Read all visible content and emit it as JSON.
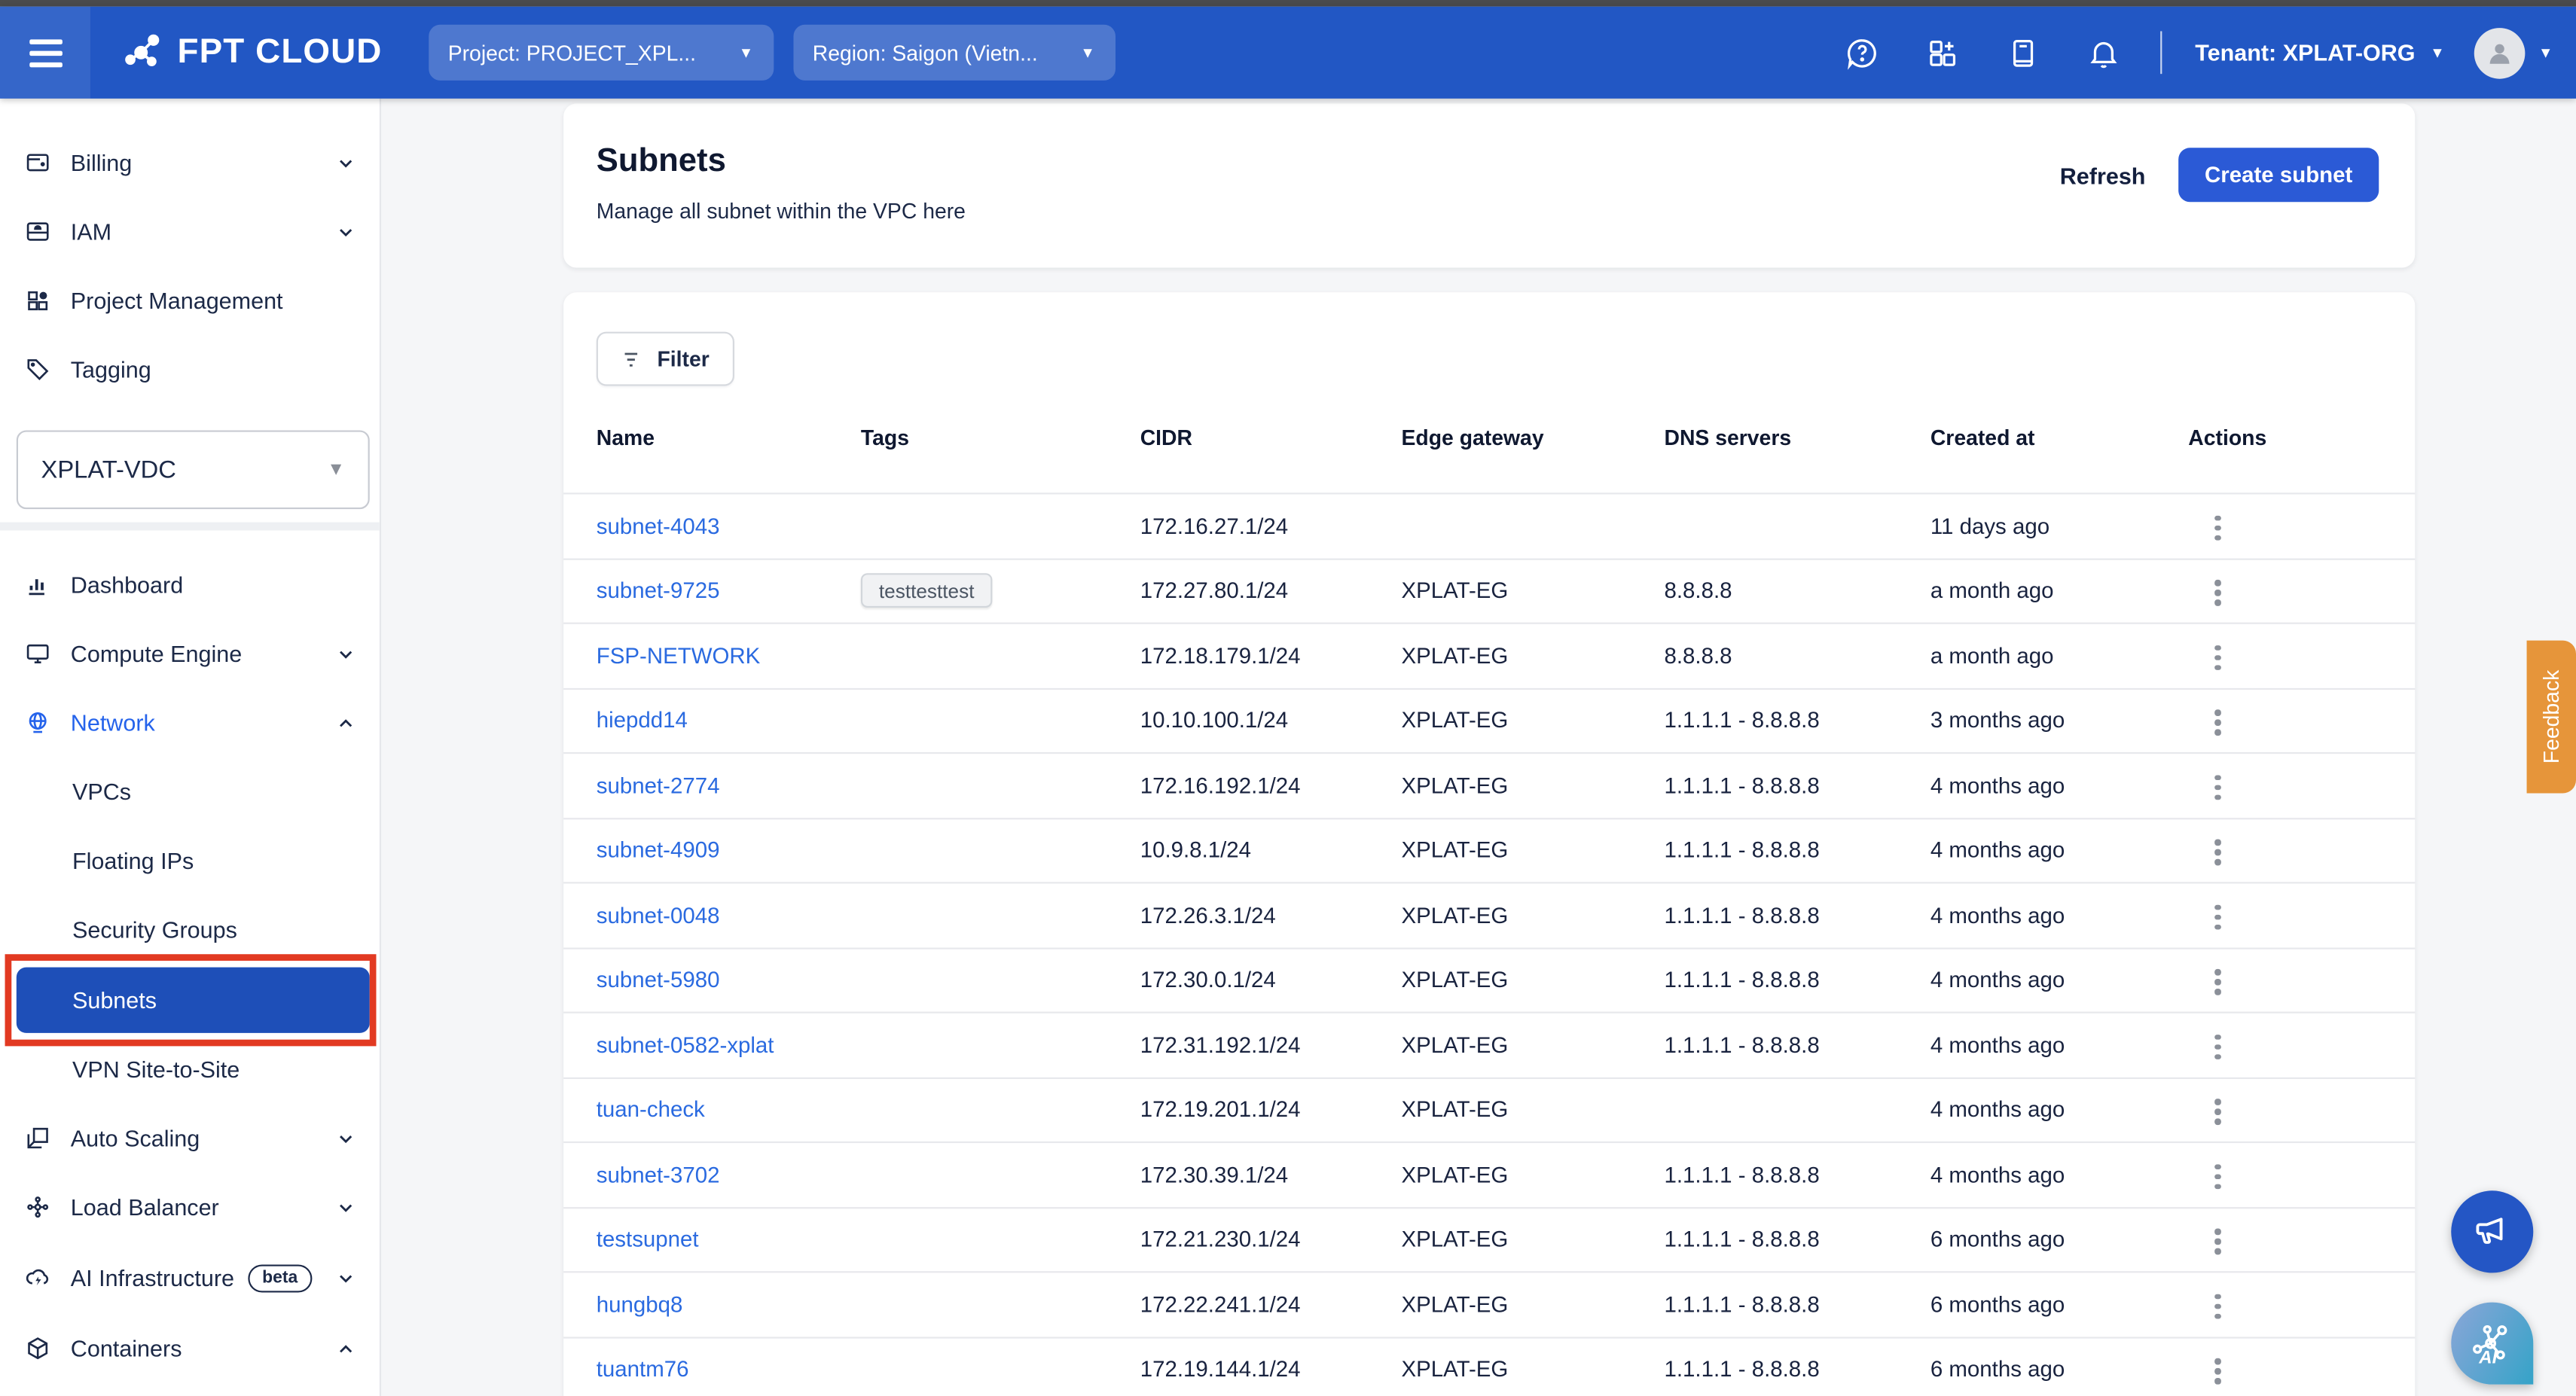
{
  "topbar": {
    "logo_text": "FPT CLOUD",
    "project_button": "Project: PROJECT_XPL...",
    "region_button": "Region: Saigon (Vietn...",
    "tenant_label": "Tenant: XPLAT-ORG",
    "action_icons": [
      "help-chat-icon",
      "apps-plus-icon",
      "docs-icon",
      "bell-icon"
    ]
  },
  "sidebar": {
    "top_items": [
      {
        "label": "Billing",
        "expandable": true
      },
      {
        "label": "IAM",
        "expandable": true
      },
      {
        "label": "Project Management",
        "expandable": false
      },
      {
        "label": "Tagging",
        "expandable": false
      }
    ],
    "vdc_selector": {
      "value": "XPLAT-VDC"
    },
    "menu": [
      {
        "label": "Dashboard"
      },
      {
        "label": "Compute Engine",
        "expandable": true
      },
      {
        "label": "Network",
        "active": true,
        "expanded": true
      }
    ],
    "network_subitems": [
      {
        "label": "VPCs",
        "selected": false
      },
      {
        "label": "Floating IPs",
        "selected": false
      },
      {
        "label": "Security Groups",
        "selected": false
      },
      {
        "label": "Subnets",
        "selected": true
      },
      {
        "label": "VPN Site-to-Site",
        "selected": false
      }
    ],
    "bottom_items": [
      {
        "label": "Auto Scaling",
        "expandable": true
      },
      {
        "label": "Load Balancer",
        "expandable": true
      },
      {
        "label": "AI Infrastructure",
        "badge": "beta",
        "expandable": true
      },
      {
        "label": "Containers",
        "expandable": true,
        "expanded": true
      }
    ]
  },
  "page": {
    "title": "Subnets",
    "subtitle": "Manage all subnet within the VPC here",
    "refresh_label": "Refresh",
    "create_label": "Create subnet"
  },
  "table": {
    "filter_label": "Filter",
    "columns": [
      "Name",
      "Tags",
      "CIDR",
      "Edge gateway",
      "DNS servers",
      "Created at",
      "Actions"
    ],
    "rows": [
      {
        "name": "subnet-4043",
        "tags": [],
        "cidr": "172.16.27.1/24",
        "edge_gateway": "",
        "dns_servers": "",
        "created_at": "11 days ago"
      },
      {
        "name": "subnet-9725",
        "tags": [
          "testtesttest"
        ],
        "cidr": "172.27.80.1/24",
        "edge_gateway": "XPLAT-EG",
        "dns_servers": "8.8.8.8",
        "created_at": "a month ago"
      },
      {
        "name": "FSP-NETWORK",
        "tags": [],
        "cidr": "172.18.179.1/24",
        "edge_gateway": "XPLAT-EG",
        "dns_servers": "8.8.8.8",
        "created_at": "a month ago"
      },
      {
        "name": "hiepdd14",
        "tags": [],
        "cidr": "10.10.100.1/24",
        "edge_gateway": "XPLAT-EG",
        "dns_servers": "1.1.1.1 - 8.8.8.8",
        "created_at": "3 months ago"
      },
      {
        "name": "subnet-2774",
        "tags": [],
        "cidr": "172.16.192.1/24",
        "edge_gateway": "XPLAT-EG",
        "dns_servers": "1.1.1.1 - 8.8.8.8",
        "created_at": "4 months ago"
      },
      {
        "name": "subnet-4909",
        "tags": [],
        "cidr": "10.9.8.1/24",
        "edge_gateway": "XPLAT-EG",
        "dns_servers": "1.1.1.1 - 8.8.8.8",
        "created_at": "4 months ago"
      },
      {
        "name": "subnet-0048",
        "tags": [],
        "cidr": "172.26.3.1/24",
        "edge_gateway": "XPLAT-EG",
        "dns_servers": "1.1.1.1 - 8.8.8.8",
        "created_at": "4 months ago"
      },
      {
        "name": "subnet-5980",
        "tags": [],
        "cidr": "172.30.0.1/24",
        "edge_gateway": "XPLAT-EG",
        "dns_servers": "1.1.1.1 - 8.8.8.8",
        "created_at": "4 months ago"
      },
      {
        "name": "subnet-0582-xplat",
        "tags": [],
        "cidr": "172.31.192.1/24",
        "edge_gateway": "XPLAT-EG",
        "dns_servers": "1.1.1.1 - 8.8.8.8",
        "created_at": "4 months ago"
      },
      {
        "name": "tuan-check",
        "tags": [],
        "cidr": "172.19.201.1/24",
        "edge_gateway": "XPLAT-EG",
        "dns_servers": "",
        "created_at": "4 months ago"
      },
      {
        "name": "subnet-3702",
        "tags": [],
        "cidr": "172.30.39.1/24",
        "edge_gateway": "XPLAT-EG",
        "dns_servers": "1.1.1.1 - 8.8.8.8",
        "created_at": "4 months ago"
      },
      {
        "name": "testsupnet",
        "tags": [],
        "cidr": "172.21.230.1/24",
        "edge_gateway": "XPLAT-EG",
        "dns_servers": "1.1.1.1 - 8.8.8.8",
        "created_at": "6 months ago"
      },
      {
        "name": "hungbq8",
        "tags": [],
        "cidr": "172.22.241.1/24",
        "edge_gateway": "XPLAT-EG",
        "dns_servers": "1.1.1.1 - 8.8.8.8",
        "created_at": "6 months ago"
      },
      {
        "name": "tuantm76",
        "tags": [],
        "cidr": "172.19.144.1/24",
        "edge_gateway": "XPLAT-EG",
        "dns_servers": "1.1.1.1 - 8.8.8.8",
        "created_at": "6 months ago"
      }
    ]
  },
  "floating": {
    "feedback_label": "Feedback",
    "ai_fab_label": "AI"
  },
  "colors": {
    "topbar_blue": "#2257c4",
    "accent_blue": "#2b5ad6",
    "link_blue": "#2a6ae0",
    "selected_item_blue": "#1e4fb8",
    "feedback_orange": "#e6953a",
    "annotation_red": "#e23a22"
  }
}
